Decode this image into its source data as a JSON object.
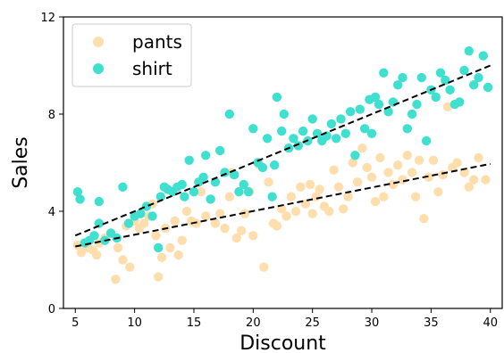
{
  "chart_data": {
    "type": "scatter",
    "title": "",
    "xlabel": "Discount",
    "ylabel": "Sales",
    "xlim": [
      4,
      41
    ],
    "ylim": [
      0,
      12
    ],
    "xticks": [
      5,
      10,
      15,
      20,
      25,
      30,
      35,
      40
    ],
    "yticks": [
      0,
      4,
      8,
      12
    ],
    "grid": false,
    "legend_position": "top-left",
    "series": [
      {
        "name": "pants",
        "color": "#ffdead",
        "points": [
          [
            5.2,
            2.6
          ],
          [
            5.5,
            2.3
          ],
          [
            6.0,
            2.5
          ],
          [
            6.5,
            2.4
          ],
          [
            6.8,
            2.2
          ],
          [
            7.0,
            2.7
          ],
          [
            7.5,
            2.9
          ],
          [
            8.0,
            3.1
          ],
          [
            8.4,
            1.2
          ],
          [
            8.6,
            2.5
          ],
          [
            9.0,
            2.0
          ],
          [
            9.3,
            3.4
          ],
          [
            9.6,
            1.7
          ],
          [
            10.0,
            3.6
          ],
          [
            10.4,
            3.3
          ],
          [
            10.8,
            3.5
          ],
          [
            11.2,
            3.8
          ],
          [
            11.5,
            4.3
          ],
          [
            11.8,
            3.0
          ],
          [
            12.0,
            1.3
          ],
          [
            12.3,
            2.1
          ],
          [
            12.6,
            3.3
          ],
          [
            13.0,
            2.5
          ],
          [
            13.4,
            3.6
          ],
          [
            13.7,
            2.2
          ],
          [
            14.0,
            2.8
          ],
          [
            14.4,
            4.0
          ],
          [
            14.8,
            3.6
          ],
          [
            15.2,
            3.5
          ],
          [
            15.6,
            4.8
          ],
          [
            16.0,
            3.8
          ],
          [
            16.4,
            4.5
          ],
          [
            16.8,
            3.5
          ],
          [
            17.2,
            3.9
          ],
          [
            17.6,
            3.3
          ],
          [
            18.0,
            4.6
          ],
          [
            18.2,
            5.6
          ],
          [
            18.6,
            2.9
          ],
          [
            19.0,
            3.2
          ],
          [
            19.3,
            3.9
          ],
          [
            19.7,
            4.8
          ],
          [
            20.0,
            3.0
          ],
          [
            20.5,
            5.9
          ],
          [
            20.9,
            1.7
          ],
          [
            21.3,
            5.2
          ],
          [
            21.7,
            3.5
          ],
          [
            22.0,
            3.4
          ],
          [
            22.4,
            4.1
          ],
          [
            22.8,
            3.8
          ],
          [
            23.2,
            4.6
          ],
          [
            23.6,
            4.0
          ],
          [
            24.0,
            5.0
          ],
          [
            24.4,
            4.3
          ],
          [
            24.8,
            5.1
          ],
          [
            25.0,
            3.9
          ],
          [
            25.3,
            4.6
          ],
          [
            25.6,
            4.9
          ],
          [
            26.0,
            4.2
          ],
          [
            26.4,
            4.0
          ],
          [
            26.8,
            5.7
          ],
          [
            27.2,
            5.0
          ],
          [
            27.6,
            4.1
          ],
          [
            28.0,
            4.6
          ],
          [
            28.4,
            6.0
          ],
          [
            28.8,
            5.2
          ],
          [
            29.2,
            6.6
          ],
          [
            29.6,
            5.8
          ],
          [
            30.0,
            5.4
          ],
          [
            30.3,
            4.4
          ],
          [
            30.7,
            6.2
          ],
          [
            31.0,
            4.6
          ],
          [
            31.4,
            5.6
          ],
          [
            31.8,
            5.1
          ],
          [
            32.2,
            5.9
          ],
          [
            32.6,
            5.3
          ],
          [
            33.0,
            6.3
          ],
          [
            33.4,
            5.6
          ],
          [
            33.7,
            4.6
          ],
          [
            34.0,
            6.1
          ],
          [
            34.4,
            3.7
          ],
          [
            34.8,
            5.4
          ],
          [
            35.2,
            6.1
          ],
          [
            35.6,
            4.8
          ],
          [
            36.0,
            5.5
          ],
          [
            36.4,
            8.3
          ],
          [
            36.8,
            5.8
          ],
          [
            37.2,
            6.0
          ],
          [
            37.8,
            5.6
          ],
          [
            38.2,
            5.0
          ],
          [
            38.6,
            5.3
          ],
          [
            39.0,
            6.2
          ],
          [
            39.6,
            5.3
          ]
        ]
      },
      {
        "name": "shirt",
        "color": "#40e0d0",
        "points": [
          [
            5.2,
            4.8
          ],
          [
            5.4,
            4.5
          ],
          [
            5.8,
            2.7
          ],
          [
            6.2,
            2.8
          ],
          [
            6.6,
            3.0
          ],
          [
            7.0,
            4.4
          ],
          [
            7.0,
            3.5
          ],
          [
            7.5,
            2.8
          ],
          [
            8.0,
            3.1
          ],
          [
            8.5,
            2.9
          ],
          [
            9.0,
            5.0
          ],
          [
            9.5,
            3.5
          ],
          [
            10.0,
            3.8
          ],
          [
            10.5,
            3.9
          ],
          [
            11.0,
            4.2
          ],
          [
            11.5,
            3.8
          ],
          [
            12.0,
            2.5
          ],
          [
            12.2,
            4.6
          ],
          [
            12.5,
            5.0
          ],
          [
            12.8,
            4.9
          ],
          [
            13.2,
            4.8
          ],
          [
            13.6,
            5.0
          ],
          [
            14.0,
            5.1
          ],
          [
            14.2,
            4.6
          ],
          [
            14.6,
            6.1
          ],
          [
            15.0,
            4.8
          ],
          [
            15.4,
            5.2
          ],
          [
            15.8,
            5.4
          ],
          [
            16.0,
            6.3
          ],
          [
            16.4,
            4.5
          ],
          [
            16.8,
            5.2
          ],
          [
            17.2,
            6.5
          ],
          [
            17.6,
            5.6
          ],
          [
            18.0,
            8.0
          ],
          [
            18.4,
            5.5
          ],
          [
            18.8,
            4.8
          ],
          [
            19.2,
            5.1
          ],
          [
            19.6,
            4.8
          ],
          [
            20.0,
            7.4
          ],
          [
            20.4,
            6.0
          ],
          [
            20.8,
            5.8
          ],
          [
            21.2,
            7.0
          ],
          [
            21.6,
            4.6
          ],
          [
            21.8,
            5.9
          ],
          [
            22.0,
            8.7
          ],
          [
            22.4,
            7.3
          ],
          [
            22.6,
            8.0
          ],
          [
            23.0,
            6.6
          ],
          [
            23.4,
            7.0
          ],
          [
            23.8,
            6.7
          ],
          [
            24.2,
            7.3
          ],
          [
            24.6,
            6.9
          ],
          [
            25.0,
            7.8
          ],
          [
            25.4,
            7.2
          ],
          [
            25.8,
            6.9
          ],
          [
            26.2,
            7.1
          ],
          [
            26.6,
            7.6
          ],
          [
            27.0,
            7.0
          ],
          [
            27.4,
            7.8
          ],
          [
            27.8,
            7.2
          ],
          [
            28.2,
            8.1
          ],
          [
            28.6,
            6.3
          ],
          [
            29.0,
            8.2
          ],
          [
            29.4,
            7.4
          ],
          [
            29.8,
            8.6
          ],
          [
            30.0,
            7.2
          ],
          [
            30.3,
            8.7
          ],
          [
            30.6,
            8.4
          ],
          [
            31.0,
            9.7
          ],
          [
            31.4,
            8.1
          ],
          [
            31.8,
            8.5
          ],
          [
            32.2,
            9.2
          ],
          [
            32.6,
            9.5
          ],
          [
            33.0,
            7.4
          ],
          [
            33.4,
            8.0
          ],
          [
            33.8,
            8.4
          ],
          [
            34.2,
            9.5
          ],
          [
            34.6,
            6.9
          ],
          [
            35.0,
            9.0
          ],
          [
            35.4,
            8.7
          ],
          [
            35.8,
            9.7
          ],
          [
            36.2,
            9.4
          ],
          [
            36.6,
            9.0
          ],
          [
            37.0,
            8.4
          ],
          [
            37.4,
            8.5
          ],
          [
            37.8,
            9.8
          ],
          [
            38.2,
            10.6
          ],
          [
            38.6,
            9.2
          ],
          [
            39.0,
            9.5
          ],
          [
            39.4,
            10.4
          ],
          [
            39.8,
            9.1
          ]
        ]
      }
    ],
    "trendlines": [
      {
        "series": "pants",
        "x": [
          5,
          40
        ],
        "y": [
          2.55,
          5.95
        ],
        "style": "dashed",
        "color": "#000000"
      },
      {
        "series": "shirt",
        "x": [
          5,
          40
        ],
        "y": [
          3.0,
          10.0
        ],
        "style": "dashed",
        "color": "#000000"
      }
    ]
  }
}
